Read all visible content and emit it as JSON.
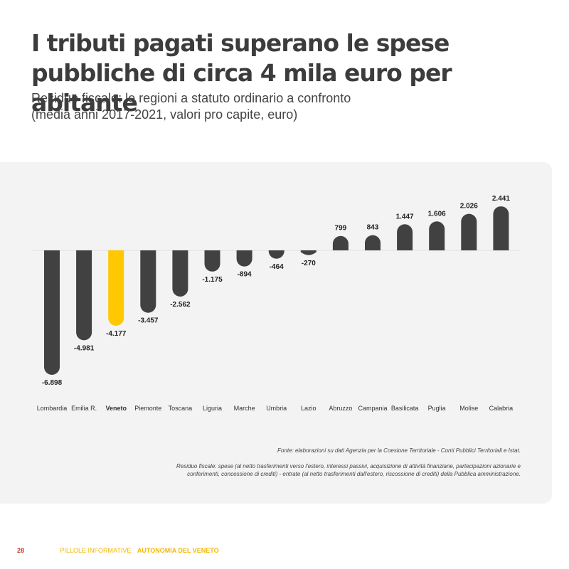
{
  "header": {
    "title": "I tributi pagati superano le spese pubbliche di circa 4 mila euro per abitante",
    "subtitle_line1": "Residuo fiscale: le regioni a statuto ordinario a confronto",
    "subtitle_line2": "(media anni 2017-2021, valori pro capite, euro)"
  },
  "chart_data": {
    "type": "bar",
    "title": "Residuo fiscale: le regioni a statuto ordinario a confronto",
    "subtitle": "(media anni 2017-2021, valori pro capite, euro)",
    "categories": [
      "Lombardia",
      "Emilia R.",
      "Veneto",
      "Piemonte",
      "Toscana",
      "Liguria",
      "Marche",
      "Umbria",
      "Lazio",
      "Abruzzo",
      "Campania",
      "Basilicata",
      "Puglia",
      "Molise",
      "Calabria"
    ],
    "values": [
      -6898,
      -4981,
      -4177,
      -3457,
      -2562,
      -1175,
      -894,
      -464,
      -270,
      799,
      843,
      1447,
      1606,
      2026,
      2441
    ],
    "value_labels": [
      "-6.898",
      "-4.981",
      "-4.177",
      "-3.457",
      "-2.562",
      "-1.175",
      "-894",
      "-464",
      "-270",
      "799",
      "843",
      "1.447",
      "1.606",
      "2.026",
      "2.441"
    ],
    "highlight": "Veneto",
    "colors": {
      "default": "#414141",
      "highlight": "#ffc800",
      "baseline": "#e2e2e2"
    },
    "grid": false,
    "legend": "none"
  },
  "notes": {
    "source": "Fonte: elaborazioni su dati Agenzia per la Coesione Territoriale - Conti Pubblici Territoriali e Istat.",
    "definition": "Residuo fiscale: spese (al netto trasferimenti verso l'estero, interessi passivi, acquisizione di attività finanziarie, partecipazioni azionarie e conferimenti, concessione di crediti) - entrate (al netto trasferimenti dall'estero, riscossione di crediti) della Pubblica amministrazione."
  },
  "footer": {
    "page_number": "28",
    "series_name": "PILLOLE INFORMATIVE",
    "series_title": "AUTONOMIA DEL VENETO"
  }
}
